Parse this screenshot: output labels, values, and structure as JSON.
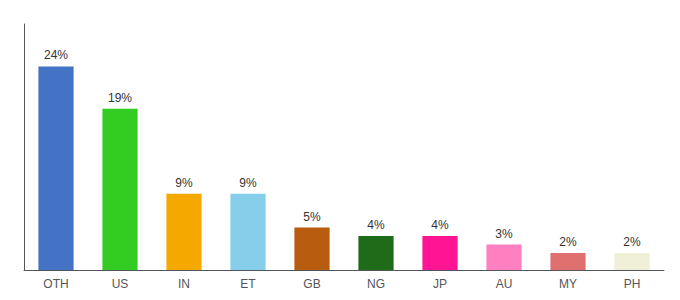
{
  "chart_data": {
    "type": "bar",
    "categories": [
      "OTH",
      "US",
      "IN",
      "ET",
      "GB",
      "NG",
      "JP",
      "AU",
      "MY",
      "PH"
    ],
    "values": [
      24,
      19,
      9,
      9,
      5,
      4,
      4,
      3,
      2,
      2
    ],
    "value_labels": [
      "24%",
      "19%",
      "9%",
      "9%",
      "5%",
      "4%",
      "4%",
      "3%",
      "2%",
      "2%"
    ],
    "colors": [
      "#4472c4",
      "#33cc22",
      "#f5a800",
      "#87ceeb",
      "#b85c10",
      "#1e6b1a",
      "#ff1493",
      "#ff80c0",
      "#e07070",
      "#f0f0d8"
    ],
    "ylim": [
      0,
      29
    ],
    "data_labels": true,
    "tick_labels": "x",
    "grid": false
  }
}
